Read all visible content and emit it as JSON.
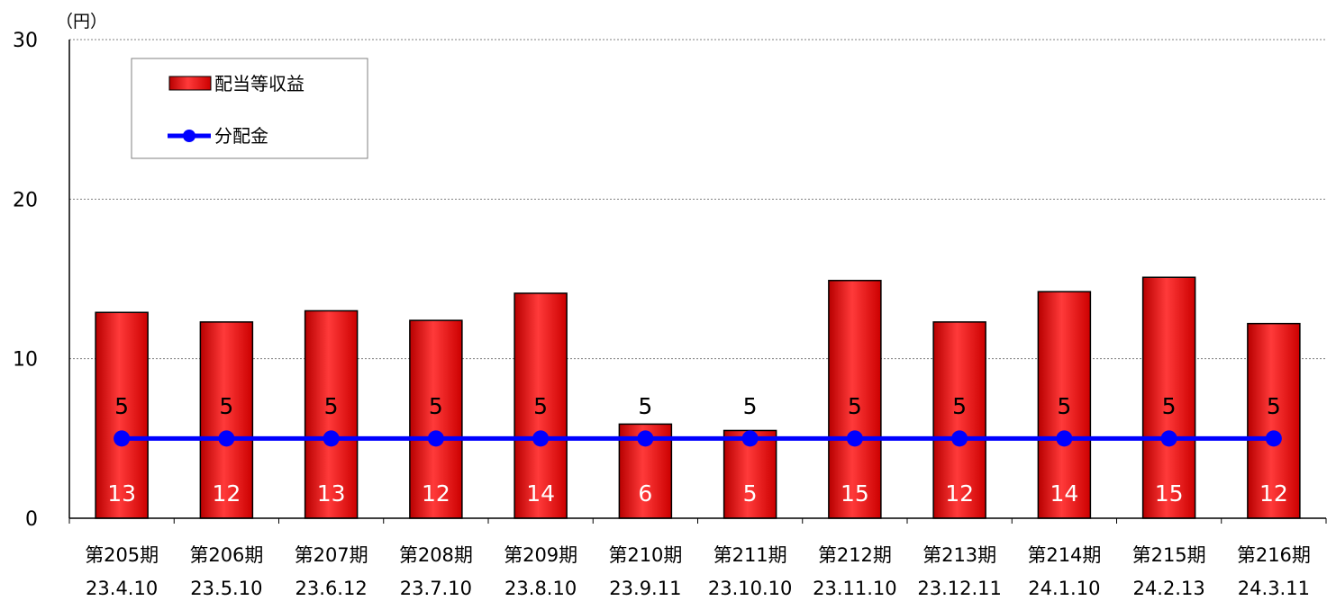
{
  "chart_data": {
    "type": "bar",
    "unit_label": "（円）",
    "ylim": [
      0,
      30
    ],
    "yticks": [
      "0",
      "10",
      "20",
      "30"
    ],
    "grid": "horizontal dotted",
    "legend_position": "top-left",
    "categories": [
      [
        "第205期",
        "23.4.10"
      ],
      [
        "第206期",
        "23.5.10"
      ],
      [
        "第207期",
        "23.6.12"
      ],
      [
        "第208期",
        "23.7.10"
      ],
      [
        "第209期",
        "23.8.10"
      ],
      [
        "第210期",
        "23.9.11"
      ],
      [
        "第211期",
        "23.10.10"
      ],
      [
        "第212期",
        "23.11.10"
      ],
      [
        "第213期",
        "23.12.11"
      ],
      [
        "第214期",
        "24.1.10"
      ],
      [
        "第215期",
        "24.2.13"
      ],
      [
        "第216期",
        "24.3.11"
      ]
    ],
    "series": [
      {
        "name": "配当等収益",
        "kind": "bar",
        "color": "#ff0000",
        "values": [
          12.9,
          12.3,
          13.0,
          12.4,
          14.1,
          5.9,
          5.5,
          14.9,
          12.3,
          14.2,
          15.1,
          12.2
        ],
        "labels": [
          "13",
          "12",
          "13",
          "12",
          "14",
          "6",
          "5",
          "15",
          "12",
          "14",
          "15",
          "12"
        ]
      },
      {
        "name": "分配金",
        "kind": "line",
        "color": "#0000ff",
        "values": [
          5,
          5,
          5,
          5,
          5,
          5,
          5,
          5,
          5,
          5,
          5,
          5
        ],
        "labels": [
          "5",
          "5",
          "5",
          "5",
          "5",
          "5",
          "5",
          "5",
          "5",
          "5",
          "5",
          "5"
        ]
      }
    ]
  }
}
